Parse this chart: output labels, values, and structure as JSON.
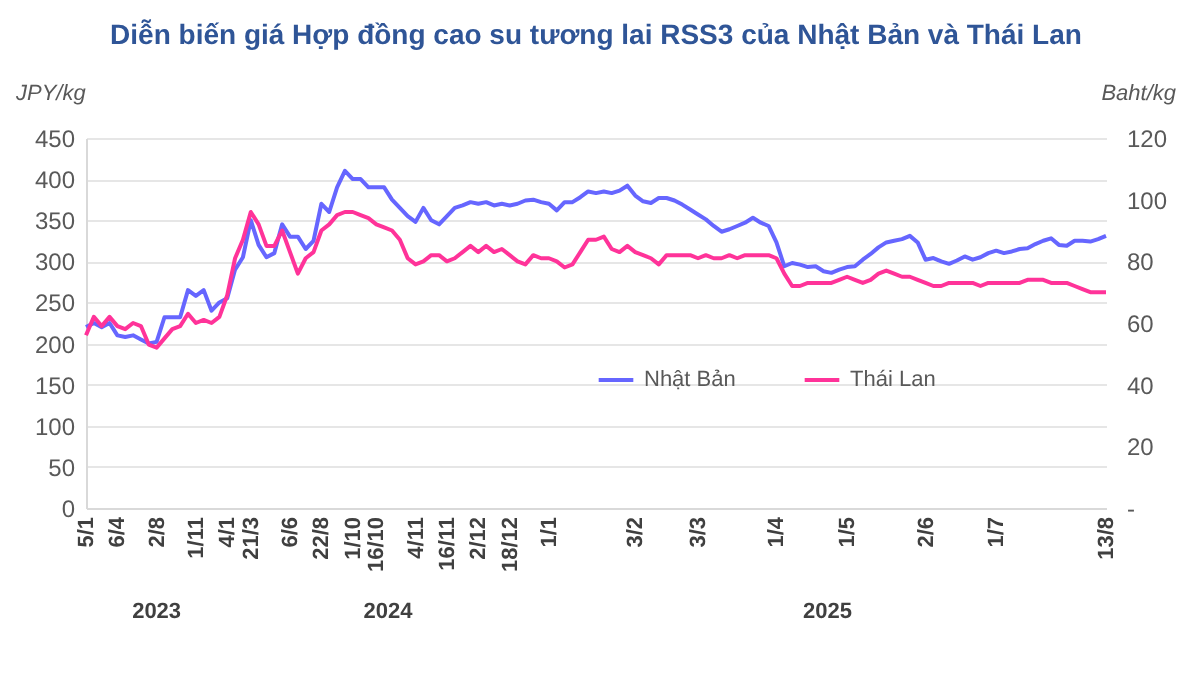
{
  "chart_data": {
    "type": "line",
    "title": "Diễn biến giá Hợp đồng cao su tương lai RSS3 của Nhật Bản và Thái Lan",
    "ylabel": "JPY/kg",
    "y2label": "Baht/kg",
    "categories": [
      "5/1",
      null,
      null,
      null,
      "6/4",
      null,
      null,
      null,
      null,
      "2/8",
      null,
      null,
      null,
      null,
      "1/11",
      null,
      null,
      null,
      "4/1",
      null,
      null,
      "21/3",
      null,
      null,
      null,
      null,
      "6/6",
      null,
      null,
      null,
      "22/8",
      null,
      null,
      null,
      "1/10",
      null,
      null,
      "16/10",
      null,
      null,
      null,
      null,
      "4/11",
      null,
      null,
      null,
      "16/11",
      null,
      null,
      null,
      "2/12",
      null,
      null,
      null,
      "18/12",
      null,
      null,
      null,
      null,
      "1/1",
      null,
      null,
      null,
      null,
      null,
      null,
      null,
      null,
      null,
      null,
      "3/2",
      null,
      null,
      null,
      null,
      null,
      null,
      null,
      "3/3",
      null,
      null,
      null,
      null,
      null,
      null,
      null,
      null,
      null,
      "1/4",
      null,
      null,
      null,
      null,
      null,
      null,
      null,
      null,
      "1/5",
      null,
      null,
      null,
      null,
      null,
      null,
      null,
      null,
      null,
      "2/6",
      null,
      null,
      null,
      null,
      null,
      null,
      null,
      null,
      "1/7",
      null,
      null,
      null,
      null,
      null,
      null,
      null,
      null,
      null,
      null,
      null,
      null,
      null,
      "13/8"
    ],
    "series": [
      {
        "name": "Nhật Bản",
        "color": "#6666ff",
        "values": [
          220,
          225,
          220,
          225,
          210,
          208,
          210,
          205,
          200,
          202,
          232,
          232,
          232,
          265,
          258,
          265,
          240,
          250,
          255,
          290,
          305,
          350,
          320,
          305,
          310,
          345,
          330,
          330,
          315,
          325,
          370,
          360,
          390,
          410,
          400,
          400,
          390,
          390,
          390,
          375,
          365,
          355,
          348,
          365,
          350,
          345,
          355,
          365,
          368,
          372,
          370,
          372,
          368,
          370,
          368,
          370,
          374,
          375,
          372,
          370,
          362,
          372,
          372,
          378,
          385,
          383,
          385,
          383,
          386,
          392,
          380,
          373,
          371,
          377,
          377,
          374,
          369,
          363,
          357,
          351,
          343,
          336,
          339,
          343,
          347,
          353,
          347,
          343,
          323,
          294,
          298,
          296,
          293,
          294,
          288,
          286,
          290,
          293,
          294,
          302,
          309,
          317,
          323,
          325,
          327,
          331,
          323,
          302,
          304,
          300,
          297,
          301,
          306,
          302,
          305,
          310,
          313,
          310,
          312,
          315,
          316,
          321,
          325,
          328,
          320,
          319,
          325,
          325,
          324,
          327,
          331
        ]
      },
      {
        "name": "Thái Lan",
        "color": "#ff3399",
        "axis": "y2",
        "values": [
          56,
          62,
          59,
          62,
          59,
          58,
          60,
          59,
          53,
          52,
          55,
          58,
          59,
          63,
          60,
          61,
          60,
          62,
          69,
          81,
          87,
          96,
          92,
          85,
          85,
          90,
          83,
          76,
          81,
          83,
          90,
          92,
          95,
          96,
          96,
          95,
          94,
          92,
          91,
          90,
          87,
          81,
          79,
          80,
          82,
          82,
          80,
          81,
          83,
          85,
          83,
          85,
          83,
          84,
          82,
          80,
          79,
          82,
          81,
          81,
          80,
          78,
          79,
          83,
          87,
          87,
          88,
          84,
          83,
          85,
          83,
          82,
          81,
          79,
          82,
          82,
          82,
          82,
          81,
          82,
          81,
          81,
          82,
          81,
          82,
          82,
          82,
          82,
          81,
          76,
          72,
          72,
          73,
          73,
          73,
          73,
          74,
          75,
          74,
          73,
          74,
          76,
          77,
          76,
          75,
          75,
          74,
          73,
          72,
          72,
          73,
          73,
          73,
          73,
          72,
          73,
          73,
          73,
          73,
          73,
          74,
          74,
          74,
          73,
          73,
          73,
          72,
          71,
          70,
          70,
          70
        ]
      }
    ],
    "ylim": [
      0,
      450
    ],
    "yticks": [
      0,
      50,
      100,
      150,
      200,
      250,
      300,
      350,
      400,
      450
    ],
    "y2lim": [
      0,
      120
    ],
    "y2ticks": [
      {
        "value": 0,
        "label": "-"
      },
      20,
      40,
      60,
      80,
      100,
      120
    ],
    "grid": "y",
    "legend": "right",
    "marker": "none",
    "line_style": "solid",
    "annotations": [
      "2023",
      "2024",
      "2025"
    ]
  }
}
